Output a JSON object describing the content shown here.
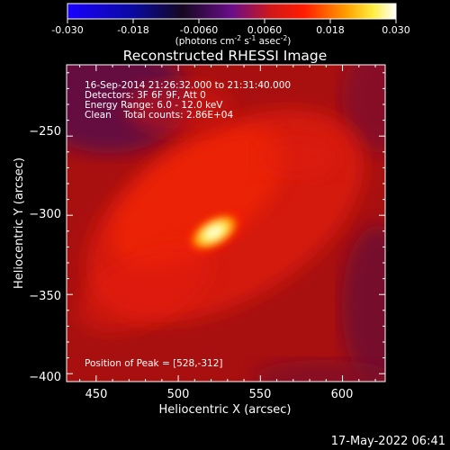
{
  "colorbar": {
    "ticks": [
      "-0.030",
      "-0.018",
      "-0.0060",
      "0.0060",
      "0.018",
      "0.030"
    ],
    "tick_values": [
      -0.03,
      -0.018,
      -0.006,
      0.006,
      0.018,
      0.03
    ],
    "range": [
      -0.03,
      0.03
    ],
    "units_main": "(photons cm",
    "units_sup1": "-2",
    "units_mid1": " s",
    "units_sup2": "-1",
    "units_mid2": " asec",
    "units_sup3": "-2",
    "units_end": ")"
  },
  "chart_data": {
    "type": "heatmap",
    "title": "Reconstructed RHESSI Image",
    "xlabel": "Heliocentric X (arcsec)",
    "ylabel": "Heliocentric Y (arcsec)",
    "xlim": [
      432,
      626
    ],
    "ylim": [
      -405,
      -205
    ],
    "xticks": [
      450,
      500,
      550,
      600
    ],
    "yticks": [
      -250,
      -300,
      -350,
      -400
    ],
    "xtick_labels": [
      "450",
      "500",
      "550",
      "600"
    ],
    "ytick_labels": [
      "−250",
      "−300",
      "−350",
      "−400"
    ],
    "peak": [
      528,
      -312
    ],
    "colormap": [
      "#0000ff",
      "#000000",
      "#5a0a78",
      "#c81e1e",
      "#ff0000",
      "#ff9600",
      "#ffff96",
      "#ffffff"
    ]
  },
  "annotations": {
    "line1": "16-Sep-2014 21:26:32.000 to 21:31:40.000",
    "line2": "Detectors: 3F 6F 9F, Att 0",
    "line3": "Energy Range: 6.0 - 12.0 keV",
    "line4": "Clean    Total counts: 2.86E+04",
    "peak_label": "Position of Peak = [528,-312]"
  },
  "footer": {
    "timestamp": "17-May-2022 06:41"
  }
}
